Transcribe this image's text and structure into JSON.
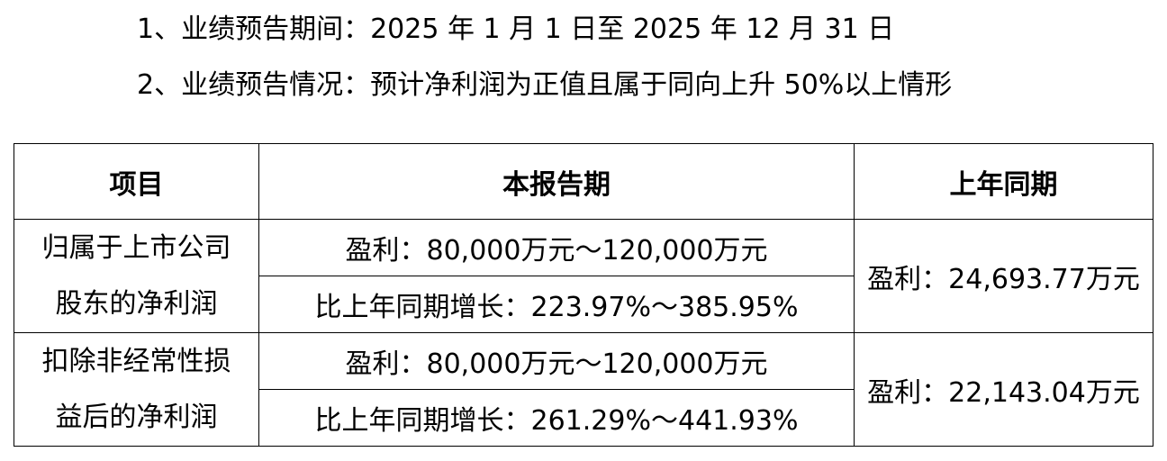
{
  "summary": {
    "line1": "1、业绩预告期间：2025 年 1 月 1 日至 2025 年 12 月 31 日",
    "line2": "2、业绩预告情况：预计净利润为正值且属于同向上升 50%以上情形"
  },
  "table": {
    "headers": {
      "item": "项目",
      "current": "本报告期",
      "prior": "上年同期"
    },
    "rows": [
      {
        "item_line1": "归属于上市公司",
        "item_line2": "股东的净利润",
        "current_profit": "盈利：80,000万元～120,000万元",
        "current_growth": "比上年同期增长：223.97%～385.95%",
        "prior": "盈利：24,693.77万元"
      },
      {
        "item_line1": "扣除非经常性损",
        "item_line2": "益后的净利润",
        "current_profit": "盈利：80,000万元～120,000万元",
        "current_growth": "比上年同期增长：261.29%～441.93%",
        "prior": "盈利：22,143.04万元"
      }
    ]
  }
}
